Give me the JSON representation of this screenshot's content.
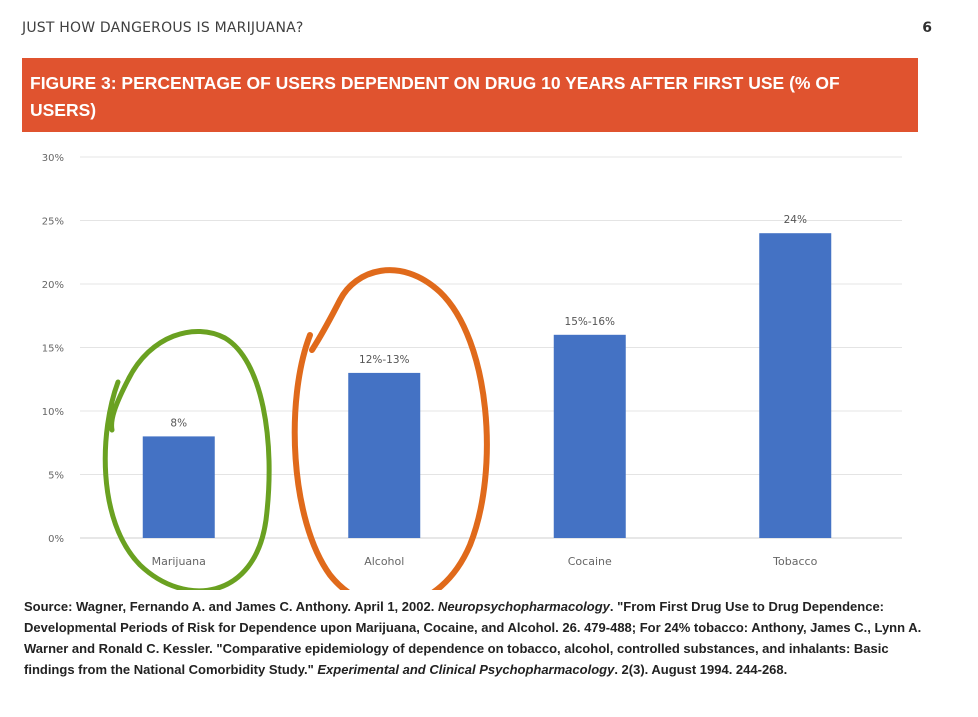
{
  "header": {
    "doc_title": "JUST HOW DANGEROUS IS MARIJUANA?",
    "page_number": "6"
  },
  "figure": {
    "caption": "FIGURE 3: PERCENTAGE OF USERS DEPENDENT ON DRUG 10 YEARS AFTER FIRST USE (% OF USERS)"
  },
  "chart_data": {
    "type": "bar",
    "title": "FIGURE 3: PERCENTAGE OF USERS DEPENDENT ON DRUG 10 YEARS AFTER FIRST USE (% OF USERS)",
    "categories": [
      "Marijuana",
      "Alcohol",
      "Cocaine",
      "Tobacco"
    ],
    "values": [
      8,
      13,
      16,
      24
    ],
    "data_labels": [
      "8%",
      "12%-13%",
      "15%-16%",
      "24%"
    ],
    "yticks": [
      "0%",
      "5%",
      "10%",
      "15%",
      "20%",
      "25%",
      "30%"
    ],
    "ylim": [
      0,
      30
    ],
    "xlabel": "",
    "ylabel": "",
    "grid": true,
    "bar_color": "#4472c4",
    "annotations": [
      {
        "type": "hand-drawn circle",
        "target": "Marijuana",
        "color": "#6aa121"
      },
      {
        "type": "hand-drawn circle",
        "target": "Alcohol",
        "color": "#e06a1b"
      }
    ]
  },
  "source": {
    "p1": "Source: Wagner, Fernando A. and James C. Anthony. April 1, 2002. ",
    "journal1": "Neuropsychopharmacology",
    "p2": ". \"From First Drug Use to Drug Dependence: Developmental Periods of Risk for Dependence upon Marijuana, Cocaine, and Alcohol. 26. 479-488; For 24% tobacco: Anthony, James C., Lynn A. Warner and Ronald C. Kessler. \"Comparative epidemiology of dependence on tobacco, alcohol, controlled substances, and inhalants: Basic findings from the National Comorbidity Study.\" ",
    "journal2": "Experimental and Clinical Psychopharmacology",
    "p3": ". 2(3). August 1994. 244-268."
  },
  "colors": {
    "banner": "#e0532f",
    "bars": "#4472c4",
    "green_circle": "#6aa121",
    "orange_circle": "#e06a1b"
  }
}
